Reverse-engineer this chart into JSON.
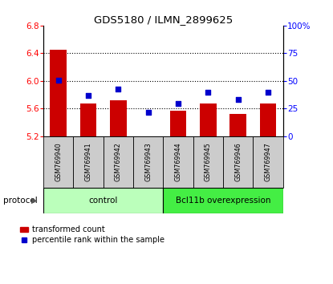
{
  "title": "GDS5180 / ILMN_2899625",
  "samples": [
    "GSM769940",
    "GSM769941",
    "GSM769942",
    "GSM769943",
    "GSM769944",
    "GSM769945",
    "GSM769946",
    "GSM769947"
  ],
  "transformed_count": [
    6.45,
    5.67,
    5.72,
    5.2,
    5.57,
    5.68,
    5.52,
    5.67
  ],
  "percentile_rank": [
    51,
    37,
    43,
    22,
    30,
    40,
    33,
    40
  ],
  "ylim_left": [
    5.2,
    6.8
  ],
  "ylim_right": [
    0,
    100
  ],
  "yticks_left": [
    5.2,
    5.6,
    6.0,
    6.4,
    6.8
  ],
  "yticks_right": [
    0,
    25,
    50,
    75,
    100
  ],
  "ytick_labels_right": [
    "0",
    "25",
    "50",
    "75",
    "100%"
  ],
  "bar_color": "#cc0000",
  "marker_color": "#0000cc",
  "bar_bottom": 5.2,
  "control_label": "control",
  "overexp_label": "Bcl11b overexpression",
  "protocol_label": "protocol",
  "legend_bar_label": "transformed count",
  "legend_marker_label": "percentile rank within the sample",
  "control_color": "#bbffbb",
  "overexp_color": "#44ee44",
  "sample_box_color": "#cccccc",
  "grid_ticks": [
    5.6,
    6.0,
    6.4
  ]
}
